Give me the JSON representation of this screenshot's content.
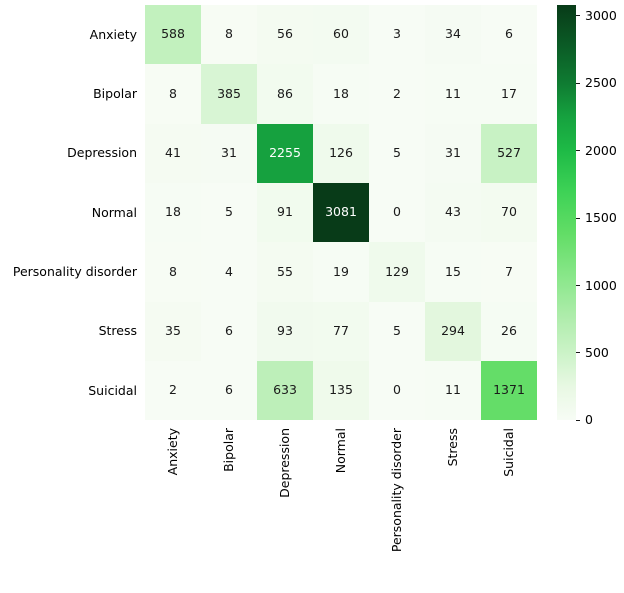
{
  "figure": {
    "background_color": "#ffffff"
  },
  "chart_data": {
    "type": "heatmap",
    "title": "",
    "xlabel": "",
    "ylabel": "",
    "row_labels": [
      "Anxiety",
      "Bipolar",
      "Depression",
      "Normal",
      "Personality disorder",
      "Stress",
      "Suicidal"
    ],
    "col_labels": [
      "Anxiety",
      "Bipolar",
      "Depression",
      "Normal",
      "Personality disorder",
      "Stress",
      "Suicidal"
    ],
    "matrix": [
      [
        588,
        8,
        56,
        60,
        3,
        34,
        6
      ],
      [
        8,
        385,
        86,
        18,
        2,
        11,
        17
      ],
      [
        41,
        31,
        2255,
        126,
        5,
        31,
        527
      ],
      [
        18,
        5,
        91,
        3081,
        0,
        43,
        70
      ],
      [
        8,
        4,
        55,
        19,
        129,
        15,
        7
      ],
      [
        35,
        6,
        93,
        77,
        5,
        294,
        26
      ],
      [
        2,
        6,
        633,
        135,
        0,
        11,
        1371
      ]
    ],
    "vmin": 0,
    "vmax": 3081,
    "grid": false,
    "legend_position": "none",
    "colorbar": {
      "position": "right",
      "ticks": [
        0,
        500,
        1000,
        1500,
        2000,
        2500,
        3000
      ]
    },
    "colormap": {
      "name": "greens-sequential",
      "stops": [
        [
          0.0,
          "#f7fcf5"
        ],
        [
          0.08,
          "#e8f8e3"
        ],
        [
          0.16,
          "#ccf3c8"
        ],
        [
          0.25,
          "#aeecab"
        ],
        [
          0.33,
          "#8fe88f"
        ],
        [
          0.45,
          "#62dd66"
        ],
        [
          0.55,
          "#3ed256"
        ],
        [
          0.65,
          "#1eba46"
        ],
        [
          0.73,
          "#16a23f"
        ],
        [
          0.81,
          "#0f7c32"
        ],
        [
          0.9,
          "#0b5c26"
        ],
        [
          1.0,
          "#083b18"
        ]
      ]
    },
    "annotation_colors": {
      "dark": "#1a1a1a",
      "light": "#ffffff"
    }
  }
}
